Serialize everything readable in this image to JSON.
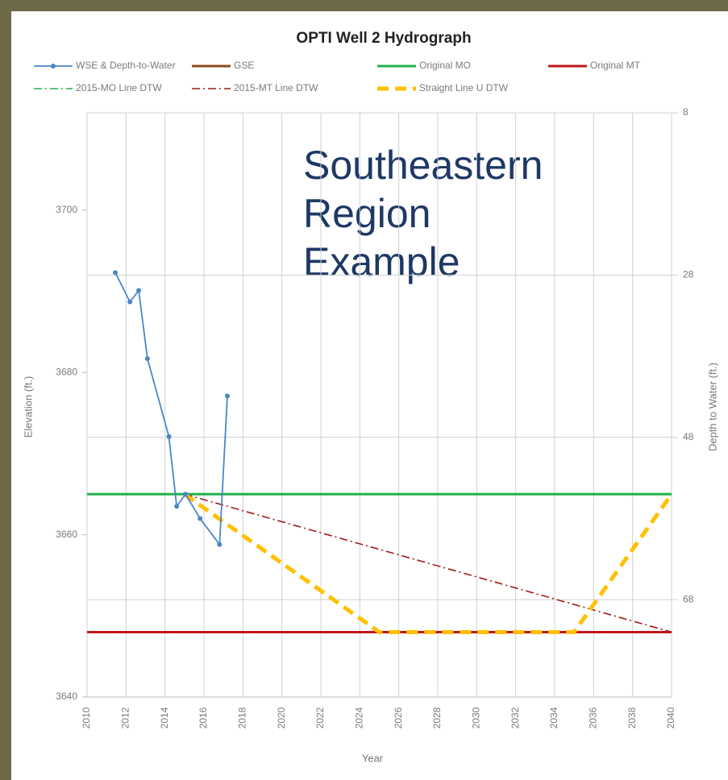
{
  "chart_data": {
    "type": "line",
    "title": "OPTI Well 2 Hydrograph",
    "annotation": "Southeastern Region Example",
    "x_label": "Year",
    "y_label": "Elevation (ft.)",
    "y2_label": "Depth to Water (ft.)",
    "xlim": [
      2010,
      2040
    ],
    "xticks": [
      2010,
      2012,
      2014,
      2016,
      2018,
      2020,
      2022,
      2024,
      2026,
      2028,
      2030,
      2032,
      2034,
      2036,
      2038,
      2040
    ],
    "ylim": [
      3640,
      3712
    ],
    "yticks": [
      3640,
      3660,
      3680,
      3700
    ],
    "y2lim": [
      80,
      8
    ],
    "y2ticks": [
      8,
      28,
      48,
      68
    ],
    "grid": true,
    "series": [
      {
        "name": "WSE & Depth-to-Water",
        "color": "#4a86c8",
        "dash": "solid",
        "markers": true,
        "x": [
          2011.45,
          2012.2,
          2012.65,
          2013.1,
          2014.2,
          2014.6,
          2015.05,
          2015.8,
          2016.8,
          2017.2
        ],
        "values": [
          3692.3,
          3688.7,
          3690.1,
          3681.7,
          3672.1,
          3663.5,
          3665,
          3662,
          3658.8,
          3677.1
        ]
      },
      {
        "name": "GSE",
        "color": "#8b4a1c",
        "dash": "solid",
        "x": [],
        "values": []
      },
      {
        "name": "Original MO",
        "color": "#22b14c",
        "dash": "solid",
        "x": [
          2010,
          2040
        ],
        "values": [
          3665,
          3665
        ]
      },
      {
        "name": "Original MT",
        "color": "#c0161c",
        "dash": "solid",
        "x": [
          2010,
          2040
        ],
        "values": [
          3648,
          3648
        ]
      },
      {
        "name": "2015-MO Line DTW",
        "color": "#22b14c",
        "dash": "dashdot",
        "x": [
          2015,
          2040
        ],
        "values": [
          3665,
          3665
        ]
      },
      {
        "name": "2015-MT Line DTW",
        "color": "#a01a1a",
        "dash": "dashdot",
        "x": [
          2015,
          2040
        ],
        "values": [
          3665,
          3648
        ]
      },
      {
        "name": "Straight Line U DTW",
        "color": "#ffc000",
        "dash": "dash",
        "x": [
          2015,
          2025,
          2035,
          2040
        ],
        "values": [
          3665,
          3648,
          3648,
          3665
        ]
      }
    ]
  }
}
